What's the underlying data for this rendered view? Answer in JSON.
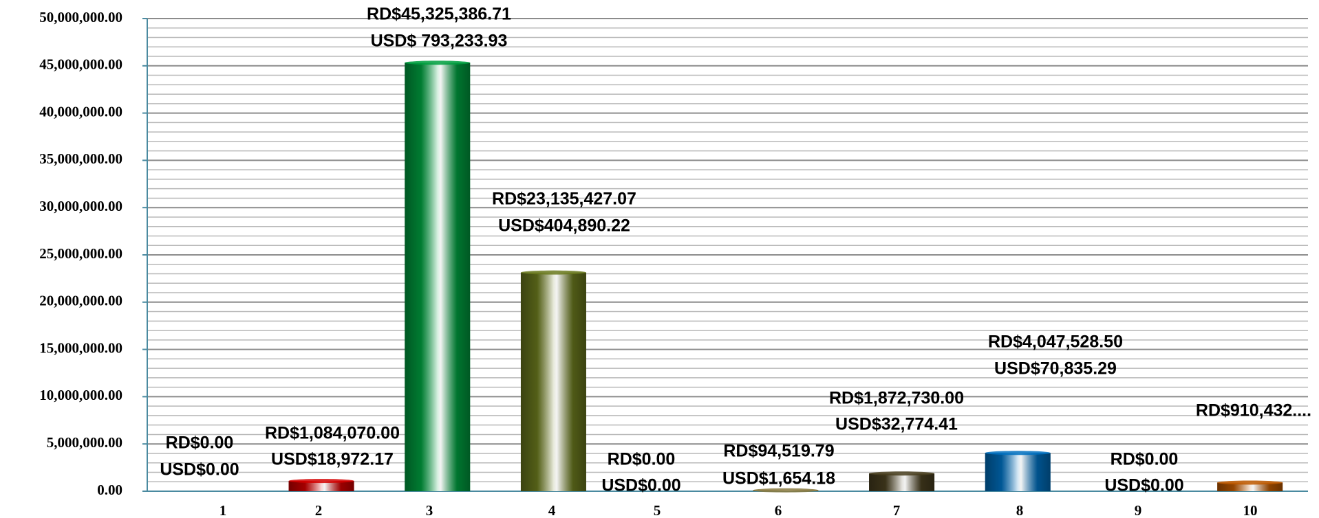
{
  "chart_data": {
    "type": "bar",
    "categories": [
      "1",
      "2",
      "3",
      "4",
      "5",
      "6",
      "7",
      "8",
      "9",
      "10"
    ],
    "values": [
      0,
      1084070,
      45325386.71,
      23135427.07,
      0,
      94519.79,
      1872730,
      4047528.5,
      0,
      910432
    ],
    "value_labels": [
      "RD$0.00",
      "RD$1,084,070.00",
      "RD$45,325,386.71",
      "RD$23,135,427.07",
      "RD$0.00",
      "RD$94,519.79",
      "RD$1,872,730.00",
      "RD$4,047,528.50",
      "RD$0.00",
      "RD$910,432...."
    ],
    "usd_labels": [
      "USD$0.00",
      "USD$18,972.17",
      "USD$ 793,233.93",
      "USD$404,890.22",
      "USD$0.00",
      "USD$1,654.18",
      "USD$32,774.41",
      "USD$70,835.29",
      "USD$0.00",
      null
    ],
    "colors": [
      "#7f7f7f",
      "#d40000",
      "#00a040",
      "#6b7a1e",
      "#2a6fb0",
      "#8a7a40",
      "#4a4020",
      "#0070c0",
      "#7f7f7f",
      "#c05a00"
    ],
    "ylim": [
      0,
      50000000
    ],
    "yticks": [
      {
        "value": 0,
        "label": "0.00"
      },
      {
        "value": 5000000,
        "label": "5,000,000.00"
      },
      {
        "value": 10000000,
        "label": "10,000,000.00"
      },
      {
        "value": 15000000,
        "label": "15,000,000.00"
      },
      {
        "value": 20000000,
        "label": "20,000,000.00"
      },
      {
        "value": 25000000,
        "label": "25,000,000.00"
      },
      {
        "value": 30000000,
        "label": "30,000,000.00"
      },
      {
        "value": 35000000,
        "label": "35,000,000.00"
      },
      {
        "value": 40000000,
        "label": "40,000,000.00"
      },
      {
        "value": 45000000,
        "label": "45,000,000.00"
      },
      {
        "value": 50000000,
        "label": "50,000,000.00"
      }
    ],
    "grid": true
  }
}
